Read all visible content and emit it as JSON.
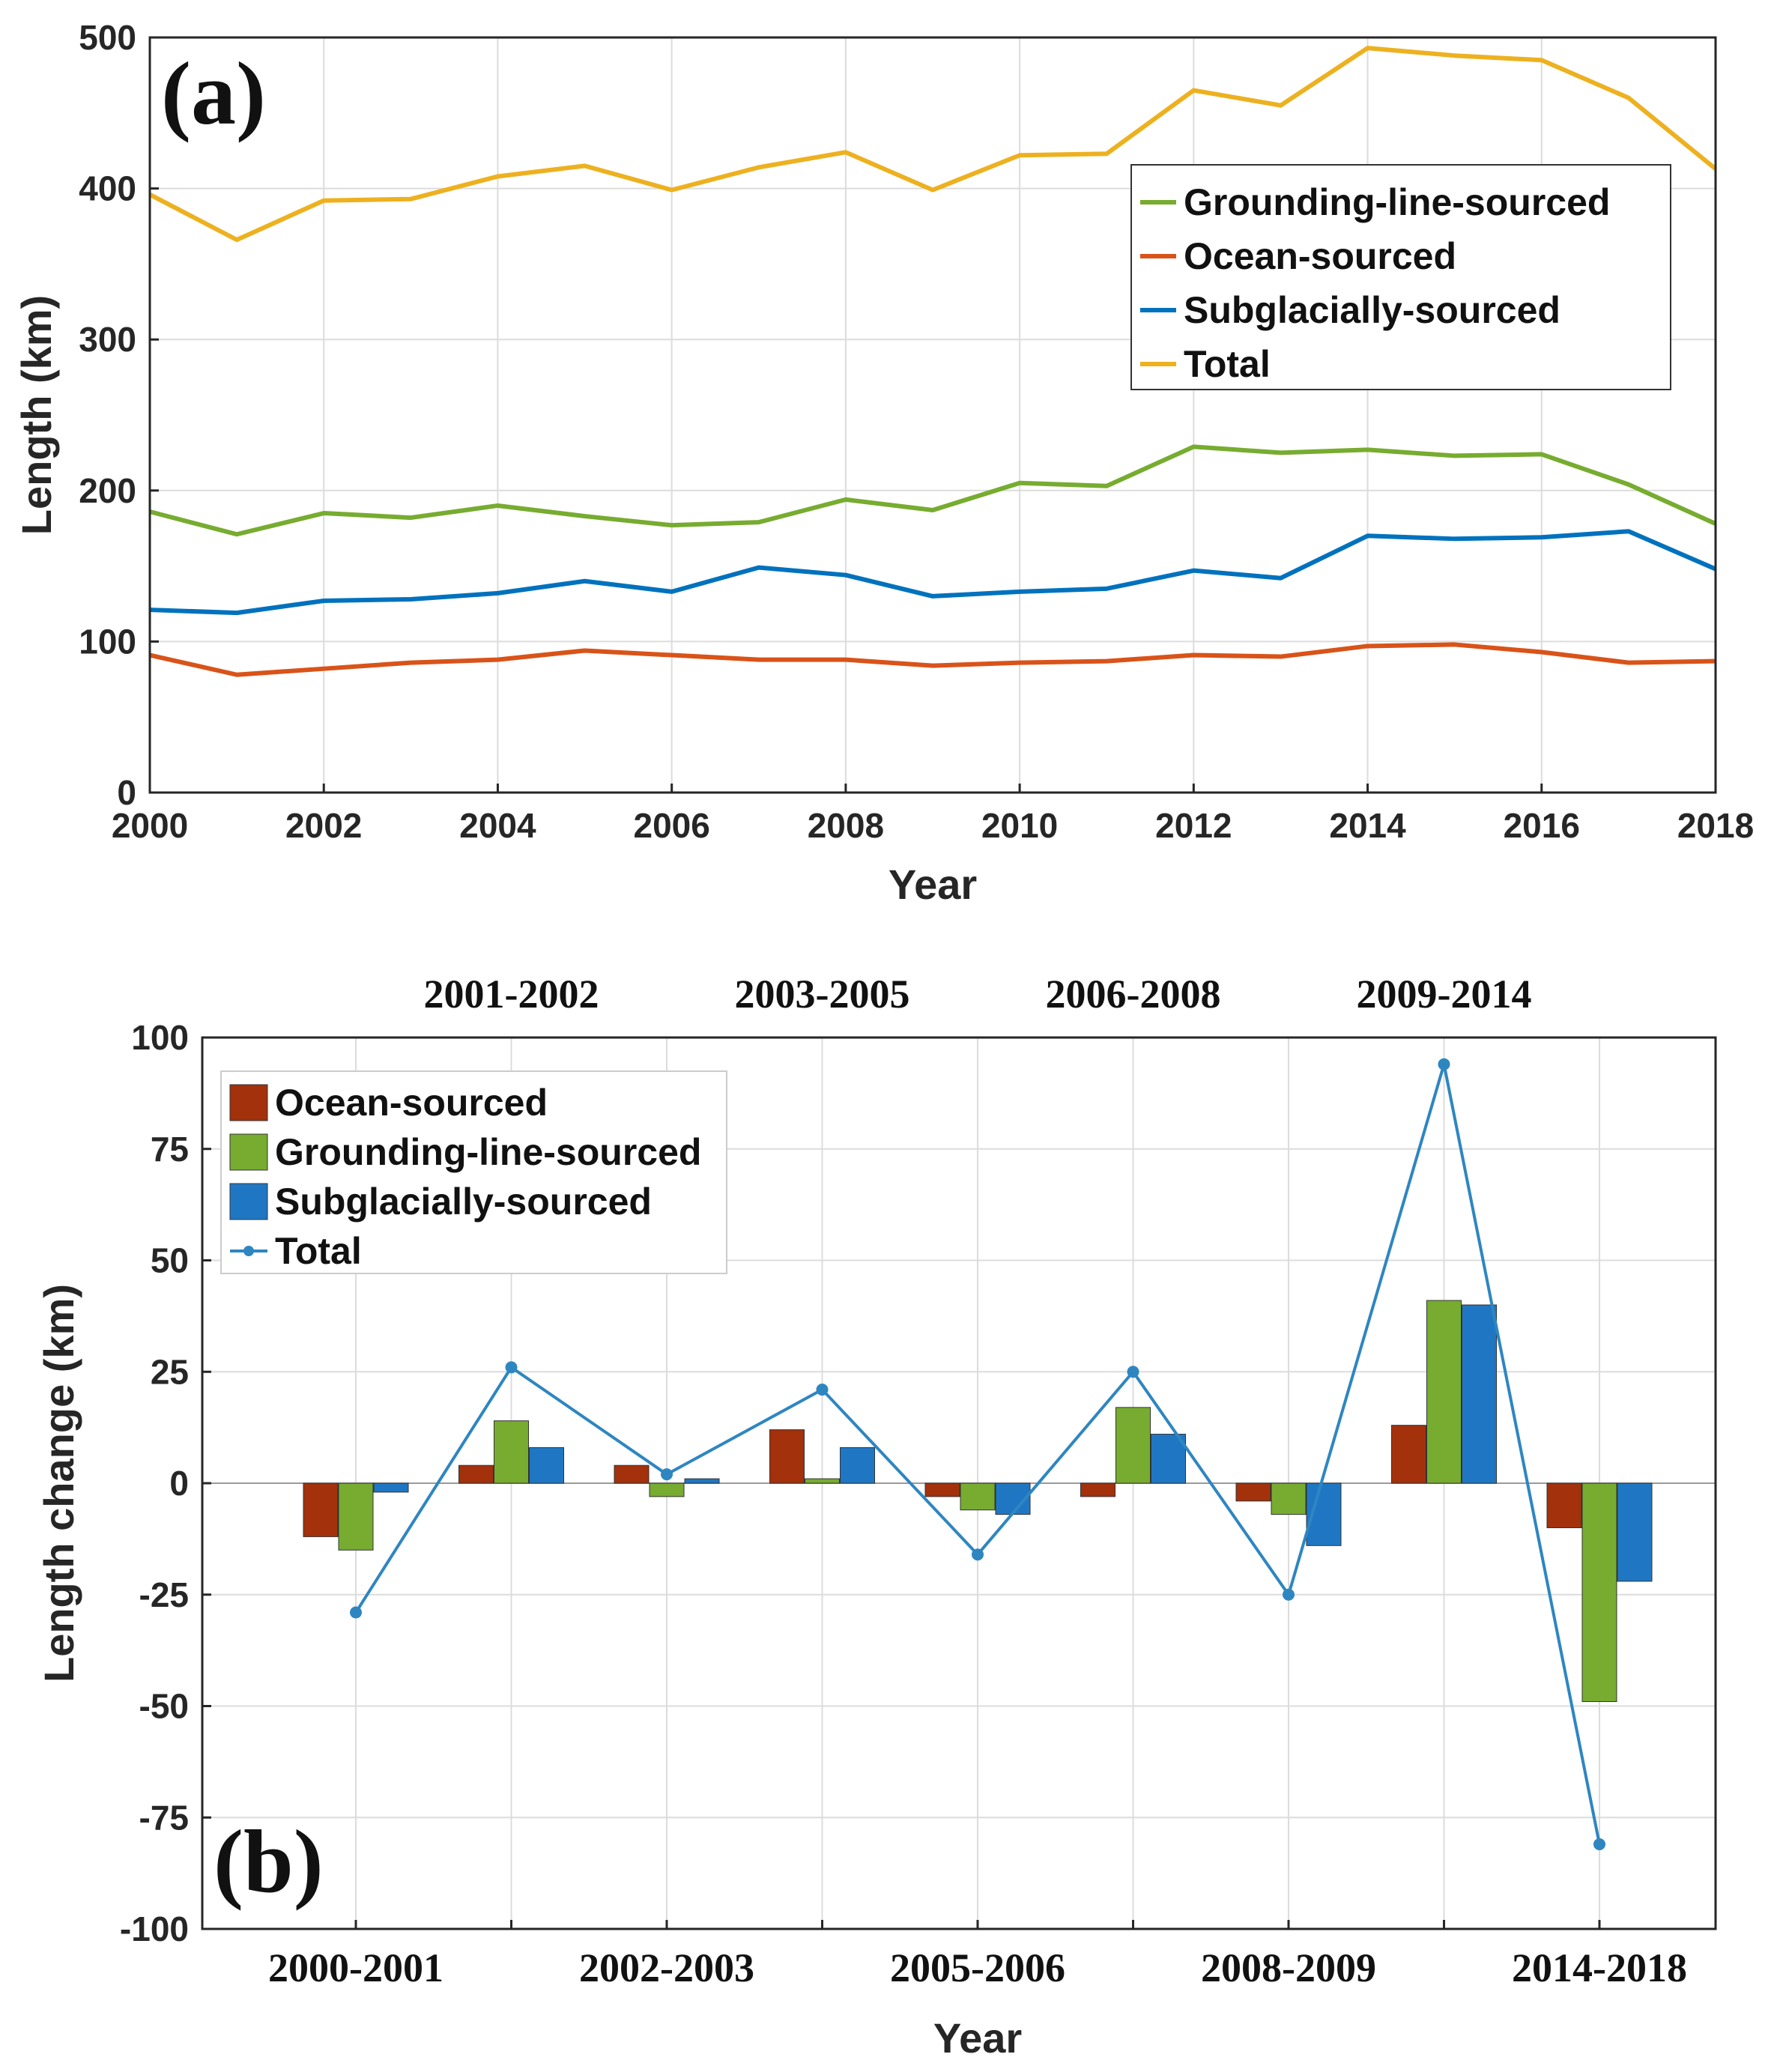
{
  "chart_data": [
    {
      "type": "line",
      "panel_label": "(a)",
      "xlabel": "Year",
      "ylabel": "Length (km)",
      "xlim": [
        2000,
        2018
      ],
      "ylim": [
        0,
        500
      ],
      "x_ticks": [
        "2000",
        "2002",
        "2004",
        "2006",
        "2008",
        "2010",
        "2012",
        "2014",
        "2016",
        "2018"
      ],
      "y_ticks": [
        "0",
        "100",
        "200",
        "300",
        "400",
        "500"
      ],
      "grid": true,
      "legend_position": "top-right",
      "x": [
        2000,
        2001,
        2002,
        2003,
        2004,
        2005,
        2006,
        2007,
        2008,
        2009,
        2010,
        2011,
        2012,
        2013,
        2014,
        2015,
        2016,
        2017,
        2018
      ],
      "series": [
        {
          "name": "Grounding-line-sourced",
          "color": "#77ac30",
          "values": [
            186,
            171,
            185,
            182,
            190,
            183,
            177,
            179,
            194,
            187,
            205,
            203,
            229,
            225,
            227,
            223,
            224,
            204,
            178
          ]
        },
        {
          "name": "Ocean-sourced",
          "color": "#d95319",
          "values": [
            91,
            78,
            82,
            86,
            88,
            94,
            91,
            88,
            88,
            84,
            86,
            87,
            91,
            90,
            97,
            98,
            93,
            86,
            87
          ]
        },
        {
          "name": "Subglacially-sourced",
          "color": "#0072bd",
          "values": [
            121,
            119,
            127,
            128,
            132,
            140,
            133,
            149,
            144,
            130,
            133,
            135,
            147,
            142,
            170,
            168,
            169,
            173,
            148
          ]
        },
        {
          "name": "Total",
          "color": "#edb120",
          "values": [
            396,
            366,
            392,
            393,
            408,
            415,
            399,
            414,
            424,
            399,
            422,
            423,
            465,
            455,
            493,
            488,
            485,
            460,
            413
          ]
        }
      ]
    },
    {
      "type": "bar",
      "panel_label": "(b)",
      "xlabel": "Year",
      "ylabel": "Length change (km)",
      "ylim": [
        -100,
        100
      ],
      "y_ticks": [
        "100",
        "75",
        "50",
        "25",
        "0",
        "-25",
        "-50",
        "-75",
        "-100"
      ],
      "grid": true,
      "legend_position": "top-left",
      "categories": [
        "2000-2001",
        "2001-2002",
        "2002-2003",
        "2003-2005",
        "2005-2006",
        "2006-2008",
        "2008-2009",
        "2009-2014",
        "2014-2018"
      ],
      "series": [
        {
          "name": "Ocean-sourced",
          "color": "#a2310c",
          "values": [
            -12,
            4,
            4,
            12,
            -3,
            -3,
            -4,
            13,
            -10
          ]
        },
        {
          "name": "Grounding-line-sourced",
          "color": "#77ac30",
          "values": [
            -15,
            14,
            -3,
            1,
            -6,
            17,
            -7,
            41,
            -49
          ]
        },
        {
          "name": "Subglacially-sourced",
          "color": "#1f77c4",
          "values": [
            -2,
            8,
            1,
            8,
            -7,
            11,
            -14,
            40,
            -22
          ]
        },
        {
          "name": "Total",
          "color": "#2e86c1",
          "kind": "line-marker",
          "values": [
            -29,
            26,
            2,
            21,
            -16,
            25,
            -25,
            94,
            -81
          ]
        }
      ]
    }
  ]
}
